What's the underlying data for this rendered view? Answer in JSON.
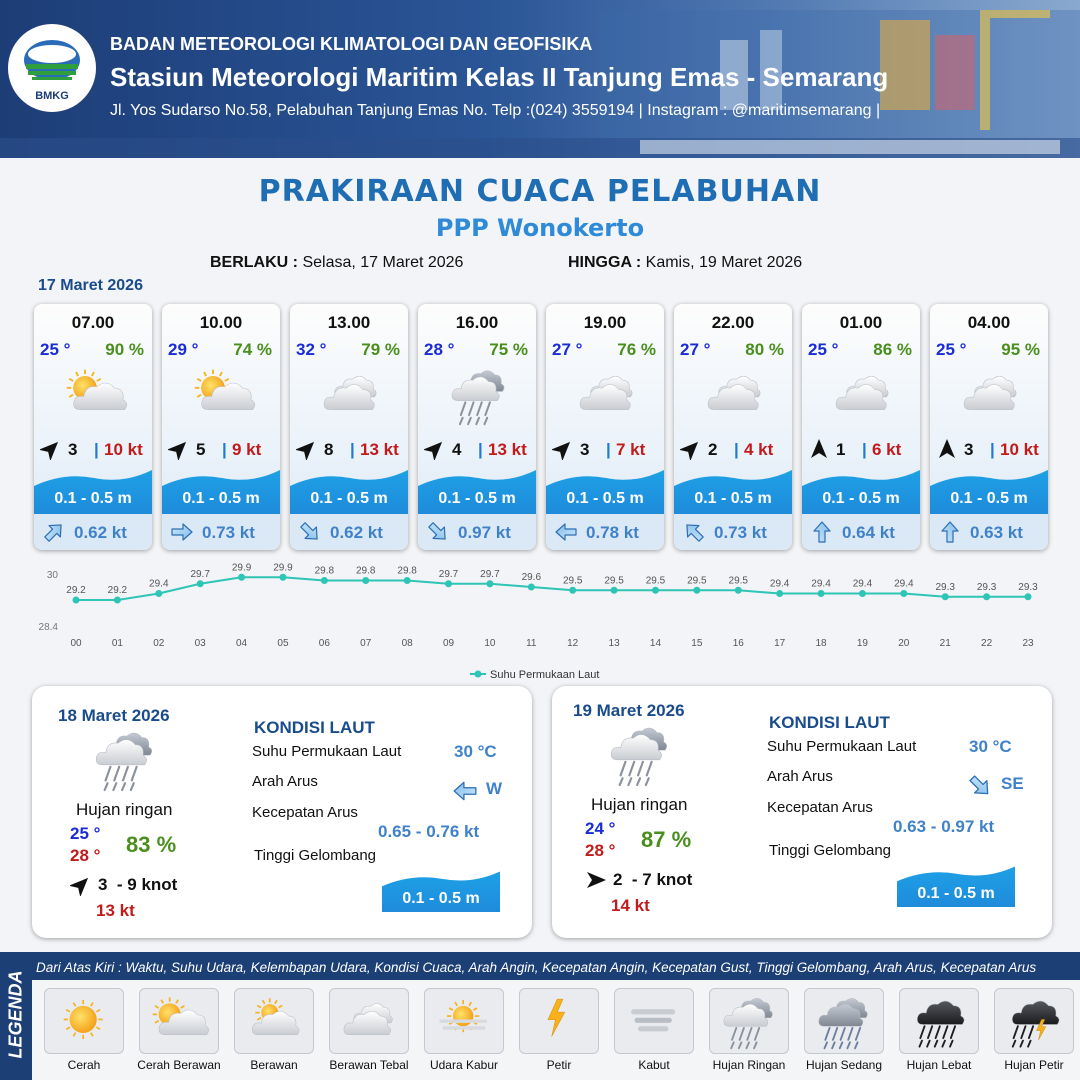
{
  "header": {
    "logo_text": "BMKG",
    "agency": "BADAN METEOROLOGI KLIMATOLOGI DAN GEOFISIKA",
    "station": "Stasiun Meteorologi Maritim Kelas II Tanjung Emas - Semarang",
    "address": "Jl. Yos Sudarso No.58, Pelabuhan Tanjung Emas No. Telp :(024) 3559194 | Instagram : @maritimsemarang |"
  },
  "title": "PRAKIRAAN CUACA PELABUHAN",
  "subtitle": "PPP Wonokerto",
  "validity": {
    "from_label": "BERLAKU :",
    "from_value": "Selasa, 17 Maret 2026",
    "to_label": "HINGGA :",
    "to_value": "Kamis, 19 Maret 2026"
  },
  "today_label": "17 Maret 2026",
  "cards": [
    {
      "time": "07.00",
      "temp": "25 °",
      "humidity": "90 %",
      "icon": "cerah-berawan-icon",
      "wind_dir": "NE",
      "wind": "3",
      "gust": "10 kt",
      "wave": "0.1 - 0.5 m",
      "current_dir": "NE",
      "current": "0.62 kt"
    },
    {
      "time": "10.00",
      "temp": "29 °",
      "humidity": "74 %",
      "icon": "cerah-berawan-icon",
      "wind_dir": "NE",
      "wind": "5",
      "gust": "9 kt",
      "wave": "0.1 - 0.5 m",
      "current_dir": "E",
      "current": "0.73 kt"
    },
    {
      "time": "13.00",
      "temp": "32 °",
      "humidity": "79 %",
      "icon": "berawan-tebal-icon",
      "wind_dir": "NE",
      "wind": "8",
      "gust": "13 kt",
      "wave": "0.1 - 0.5 m",
      "current_dir": "SE",
      "current": "0.62 kt"
    },
    {
      "time": "16.00",
      "temp": "28 °",
      "humidity": "75 %",
      "icon": "hujan-ringan-icon",
      "wind_dir": "NE",
      "wind": "4",
      "gust": "13 kt",
      "wave": "0.1 - 0.5 m",
      "current_dir": "SE",
      "current": "0.97 kt"
    },
    {
      "time": "19.00",
      "temp": "27 °",
      "humidity": "76 %",
      "icon": "berawan-tebal-icon",
      "wind_dir": "NE",
      "wind": "3",
      "gust": "7 kt",
      "wave": "0.1 - 0.5 m",
      "current_dir": "W",
      "current": "0.78 kt"
    },
    {
      "time": "22.00",
      "temp": "27 °",
      "humidity": "80 %",
      "icon": "berawan-tebal-icon",
      "wind_dir": "NE",
      "wind": "2",
      "gust": "4 kt",
      "wave": "0.1 - 0.5 m",
      "current_dir": "NW",
      "current": "0.73 kt"
    },
    {
      "time": "01.00",
      "temp": "25 °",
      "humidity": "86 %",
      "icon": "berawan-tebal-icon",
      "wind_dir": "N",
      "wind": "1",
      "gust": "6 kt",
      "wave": "0.1 - 0.5 m",
      "current_dir": "N",
      "current": "0.64 kt"
    },
    {
      "time": "04.00",
      "temp": "25 °",
      "humidity": "95 %",
      "icon": "berawan-tebal-icon",
      "wind_dir": "N",
      "wind": "3",
      "gust": "10 kt",
      "wave": "0.1 - 0.5 m",
      "current_dir": "N",
      "current": "0.63 kt"
    }
  ],
  "chart_data": {
    "type": "line",
    "x": [
      "00",
      "01",
      "02",
      "03",
      "04",
      "05",
      "06",
      "07",
      "08",
      "09",
      "10",
      "11",
      "12",
      "13",
      "14",
      "15",
      "16",
      "17",
      "18",
      "19",
      "20",
      "21",
      "22",
      "23"
    ],
    "series": [
      {
        "name": "Suhu Permukaan Laut",
        "values": [
          29.2,
          29.2,
          29.4,
          29.7,
          29.9,
          29.9,
          29.8,
          29.8,
          29.8,
          29.7,
          29.7,
          29.6,
          29.5,
          29.5,
          29.5,
          29.5,
          29.5,
          29.4,
          29.4,
          29.4,
          29.4,
          29.3,
          29.3,
          29.3
        ]
      }
    ],
    "y_tick_labels": [
      "30",
      "28.4"
    ],
    "ylim": [
      28.4,
      30
    ],
    "legend": "bottom",
    "color": "#2ec4b6"
  },
  "days": [
    {
      "date": "18 Maret 2026",
      "icon": "hujan-ringan-icon",
      "condition": "Hujan ringan",
      "tmin": "25 °",
      "tmax": "28 °",
      "humidity": "83 %",
      "wind": "3  - 9 knot",
      "gust": "13 kt",
      "kondisi_title": "KONDISI LAUT",
      "sst_label": "Suhu Permukaan Laut",
      "sst_value": "30 °C",
      "arus_label": "Arah Arus",
      "arus_value": "W",
      "kec_label": "Kecepatan Arus",
      "kec_value": "0.65 - 0.76 kt",
      "tinggi_label": "Tinggi Gelombang",
      "tinggi_value": "0.1 - 0.5 m"
    },
    {
      "date": "19 Maret 2026",
      "icon": "hujan-ringan-icon",
      "condition": "Hujan ringan",
      "tmin": "24 °",
      "tmax": "28 °",
      "humidity": "87 %",
      "wind": "2  - 7 knot",
      "gust": "14 kt",
      "kondisi_title": "KONDISI LAUT",
      "sst_label": "Suhu Permukaan Laut",
      "sst_value": "30 °C",
      "arus_label": "Arah Arus",
      "arus_value": "SE",
      "kec_label": "Kecepatan Arus",
      "kec_value": "0.63 - 0.97 kt",
      "tinggi_label": "Tinggi Gelombang",
      "tinggi_value": "0.1 - 0.5 m"
    }
  ],
  "legend": {
    "side_title": "LEGENDA",
    "description": "Dari Atas Kiri : Waktu, Suhu Udara, Kelembapan Udara, Kondisi Cuaca, Arah Angin, Kecepatan Angin, Kecepatan Gust, Tinggi Gelombang, Arah Arus, Kecepatan Arus",
    "items": [
      {
        "label": "Cerah",
        "icon": "cerah-icon"
      },
      {
        "label": "Cerah Berawan",
        "icon": "cerah-berawan-icon"
      },
      {
        "label": "Berawan",
        "icon": "berawan-icon"
      },
      {
        "label": "Berawan Tebal",
        "icon": "berawan-tebal-icon"
      },
      {
        "label": "Udara Kabur",
        "icon": "udara-kabur-icon"
      },
      {
        "label": "Petir",
        "icon": "petir-icon"
      },
      {
        "label": "Kabut",
        "icon": "kabut-icon"
      },
      {
        "label": "Hujan Ringan",
        "icon": "hujan-ringan-icon"
      },
      {
        "label": "Hujan Sedang",
        "icon": "hujan-sedang-icon"
      },
      {
        "label": "Hujan Lebat",
        "icon": "hujan-lebat-icon"
      },
      {
        "label": "Hujan Petir",
        "icon": "hujan-petir-icon"
      }
    ]
  }
}
